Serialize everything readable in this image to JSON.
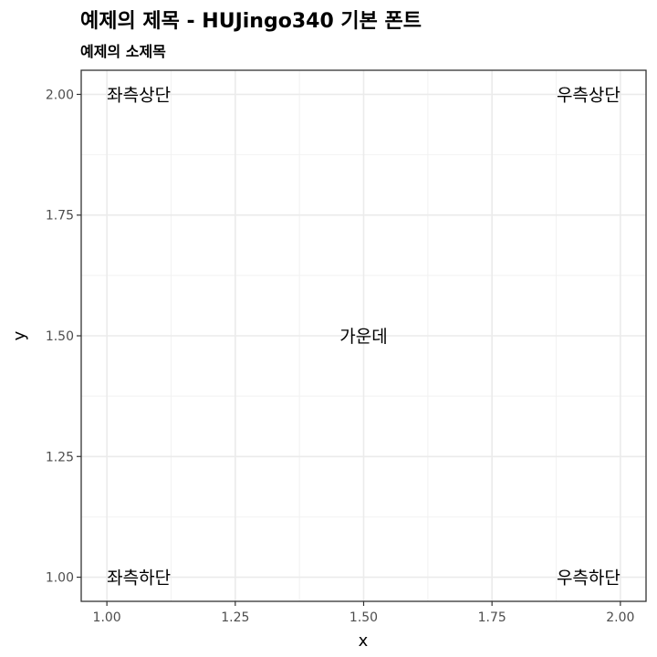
{
  "chart_data": {
    "type": "scatter",
    "title": "예제의 제목 - HUJingo340 기본 폰트",
    "subtitle": "예제의 소제목",
    "xlabel": "x",
    "ylabel": "y",
    "xlim": [
      0.95,
      2.05
    ],
    "ylim": [
      0.95,
      2.05
    ],
    "x_ticks": [
      1.0,
      1.25,
      1.5,
      1.75,
      2.0
    ],
    "y_ticks": [
      1.0,
      1.25,
      1.5,
      1.75,
      2.0
    ],
    "x_tick_labels": [
      "1.00",
      "1.25",
      "1.50",
      "1.75",
      "2.00"
    ],
    "y_tick_labels": [
      "1.00",
      "1.25",
      "1.50",
      "1.75",
      "2.00"
    ],
    "grid": true,
    "points": [
      {
        "x": 1,
        "y": 2,
        "label": "좌측상단",
        "hjust": "left"
      },
      {
        "x": 2,
        "y": 2,
        "label": "우측상단",
        "hjust": "right"
      },
      {
        "x": 1.5,
        "y": 1.5,
        "label": "가운데",
        "hjust": "center"
      },
      {
        "x": 1,
        "y": 1,
        "label": "좌측하단",
        "hjust": "left"
      },
      {
        "x": 2,
        "y": 1,
        "label": "우측하단",
        "hjust": "right"
      }
    ]
  }
}
